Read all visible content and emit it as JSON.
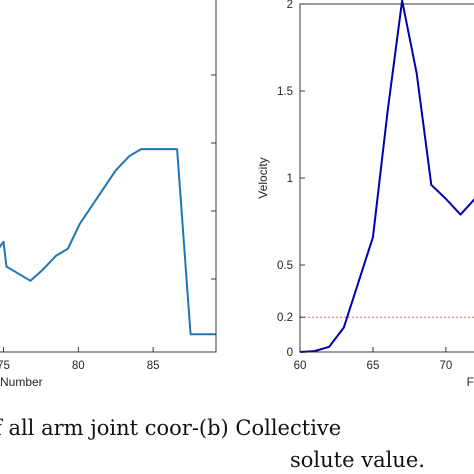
{
  "chart_data": [
    {
      "type": "line",
      "xlabel": "Number",
      "ylabel": "",
      "xlim": [
        74.5,
        89.2
      ],
      "ylim": [
        0,
        1
      ],
      "x_ticks": [
        75,
        80,
        85
      ],
      "x_tick_labels": [
        "75",
        "80",
        "85"
      ],
      "series": [
        {
          "color": "#1f77b4",
          "x": [
            74.5,
            75,
            75.2,
            76,
            76.8,
            77.6,
            78.5,
            79.3,
            80.1,
            80.9,
            81.7,
            82.5,
            83.4,
            84.2,
            85.0,
            85.8,
            86.6,
            87.5,
            88.3,
            89.2
          ],
          "y": [
            0.28,
            0.31,
            0.24,
            0.22,
            0.2,
            0.23,
            0.27,
            0.29,
            0.36,
            0.41,
            0.46,
            0.51,
            0.55,
            0.57,
            0.57,
            0.57,
            0.57,
            0.05,
            0.05,
            0.05
          ]
        }
      ]
    },
    {
      "type": "line",
      "xlabel": "F",
      "ylabel": "Velocity",
      "xlim": [
        60,
        72.2
      ],
      "ylim": [
        0,
        2
      ],
      "x_ticks": [
        60,
        65,
        70
      ],
      "x_tick_labels": [
        "60",
        "65",
        "70"
      ],
      "y_ticks": [
        0,
        0.2,
        0.5,
        1,
        1.5,
        2
      ],
      "y_tick_labels": [
        "0",
        "0.2",
        "0.5",
        "1",
        "1.5",
        "2"
      ],
      "reference_line": {
        "y": 0.2,
        "style": "dotted",
        "color": "#d9705f"
      },
      "series": [
        {
          "color": "#0000b0",
          "x": [
            60,
            61,
            62,
            63,
            64,
            65,
            66,
            67,
            68,
            69,
            70,
            71,
            72.2
          ],
          "y": [
            0.0,
            0.005,
            0.03,
            0.14,
            0.4,
            0.66,
            1.38,
            2.02,
            1.6,
            0.96,
            0.88,
            0.79,
            0.9
          ]
        }
      ]
    }
  ],
  "captions": {
    "line1": "f all arm joint coor-(b) Collective",
    "line2": "solute value."
  }
}
